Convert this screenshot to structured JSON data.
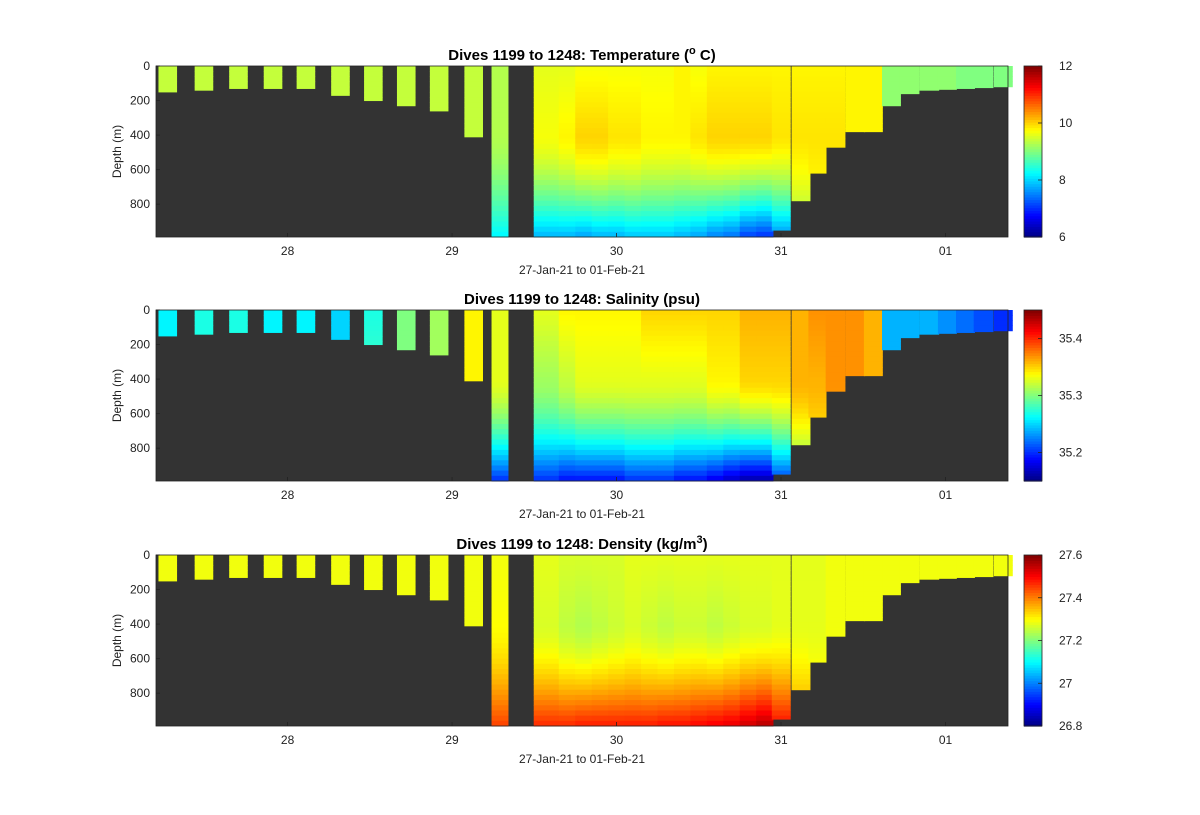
{
  "figure": {
    "colors": {
      "background": "#ffffff",
      "no_data": "#333333",
      "axis": "#222222"
    }
  },
  "chart_data": [
    {
      "type": "heatmap",
      "title": "Dives 1199 to 1248: Temperature (",
      "title_sup": "o",
      "title_tail": " C)",
      "xlabel": "27-Jan-21 to 01-Feb-21",
      "ylabel": "Depth (m)",
      "x_ticks": [
        28,
        29,
        30,
        31,
        1
      ],
      "x_tick_labels": [
        "28",
        "29",
        "30",
        "31",
        "01"
      ],
      "xlim": [
        27.2,
        32.38
      ],
      "y_ticks": [
        0,
        200,
        400,
        600,
        800
      ],
      "y_tick_labels": [
        "0",
        "200",
        "400",
        "600",
        "800"
      ],
      "ylim": [
        0,
        990
      ],
      "y_reversed": true,
      "colorbar": {
        "range": [
          6,
          12
        ],
        "ticks": [
          6,
          8,
          10,
          12
        ],
        "tick_labels": [
          "6",
          "8",
          "10",
          "12"
        ],
        "colormap": "jet"
      },
      "field": "temperature"
    },
    {
      "type": "heatmap",
      "title": "Dives 1199 to 1248: Salinity (psu)",
      "title_sup": "",
      "title_tail": "",
      "xlabel": "27-Jan-21 to 01-Feb-21",
      "ylabel": "Depth (m)",
      "x_ticks": [
        28,
        29,
        30,
        31,
        1
      ],
      "x_tick_labels": [
        "28",
        "29",
        "30",
        "31",
        "01"
      ],
      "xlim": [
        27.2,
        32.38
      ],
      "y_ticks": [
        0,
        200,
        400,
        600,
        800
      ],
      "y_tick_labels": [
        "0",
        "200",
        "400",
        "600",
        "800"
      ],
      "ylim": [
        0,
        990
      ],
      "y_reversed": true,
      "colorbar": {
        "range": [
          35.15,
          35.45
        ],
        "ticks": [
          35.2,
          35.3,
          35.4
        ],
        "tick_labels": [
          "35.2",
          "35.3",
          "35.4"
        ],
        "colormap": "jet"
      },
      "field": "salinity"
    },
    {
      "type": "heatmap",
      "title": "Dives 1199 to 1248: Density (kg/m",
      "title_sup": "3",
      "title_tail": ")",
      "xlabel": "27-Jan-21 to 01-Feb-21",
      "ylabel": "Depth (m)",
      "x_ticks": [
        28,
        29,
        30,
        31,
        1
      ],
      "x_tick_labels": [
        "28",
        "29",
        "30",
        "31",
        "01"
      ],
      "xlim": [
        27.2,
        32.38
      ],
      "y_ticks": [
        0,
        200,
        400,
        600,
        800
      ],
      "y_tick_labels": [
        "0",
        "200",
        "400",
        "600",
        "800"
      ],
      "ylim": [
        0,
        990
      ],
      "y_reversed": true,
      "colorbar": {
        "range": [
          26.8,
          27.6
        ],
        "ticks": [
          26.8,
          27,
          27.2,
          27.4,
          27.6
        ],
        "tick_labels": [
          "26.8",
          "27",
          "27.2",
          "27.4",
          "27.6"
        ],
        "colormap": "jet"
      },
      "field": "density"
    }
  ],
  "dives": {
    "time": [
      27.27,
      27.49,
      27.7,
      27.91,
      28.11,
      28.32,
      28.52,
      28.72,
      28.92,
      29.13,
      29.29,
      29.6,
      29.7,
      29.8,
      29.9,
      30.0,
      30.1,
      30.2,
      30.3,
      30.4,
      30.5,
      30.6,
      30.7,
      30.8,
      30.9,
      31.0,
      31.12,
      31.22,
      31.33,
      31.45,
      31.56,
      31.67,
      31.78,
      31.9,
      32.01,
      32.12,
      32.23,
      32.35
    ],
    "max_depth": [
      150,
      140,
      130,
      130,
      130,
      170,
      200,
      230,
      260,
      410,
      990,
      990,
      990,
      990,
      990,
      990,
      990,
      990,
      990,
      990,
      990,
      990,
      990,
      990,
      990,
      950,
      780,
      620,
      470,
      380,
      380,
      230,
      160,
      140,
      135,
      130,
      125,
      120
    ],
    "temperature": {
      "surface": [
        9.4,
        9.4,
        9.4,
        9.4,
        9.4,
        9.4,
        9.4,
        9.4,
        9.4,
        9.4,
        9.3,
        9.6,
        9.6,
        9.7,
        9.7,
        9.7,
        9.7,
        9.7,
        9.7,
        9.8,
        9.7,
        9.8,
        9.8,
        9.8,
        9.8,
        9.8,
        9.8,
        9.8,
        9.8,
        9.8,
        9.8,
        9.1,
        9.1,
        9.1,
        9.1,
        9.0,
        9.0,
        9.0
      ],
      "mid": [
        9.4,
        9.4,
        9.4,
        9.4,
        9.4,
        9.4,
        9.4,
        9.4,
        9.4,
        9.4,
        9.3,
        9.7,
        9.8,
        10.0,
        10.0,
        9.9,
        9.9,
        9.8,
        9.8,
        9.8,
        9.9,
        10.0,
        10.0,
        10.0,
        10.0,
        9.9,
        9.9,
        9.9,
        9.9,
        9.8,
        9.8,
        9.1,
        9.1,
        9.1,
        9.1,
        9.0,
        9.0,
        9.0
      ],
      "bottom": [
        9.4,
        9.4,
        9.4,
        9.4,
        9.4,
        9.4,
        9.4,
        9.4,
        9.4,
        9.4,
        8.2,
        7.8,
        7.8,
        7.7,
        7.8,
        7.8,
        7.9,
        7.9,
        7.9,
        7.8,
        7.7,
        7.5,
        7.4,
        7.1,
        7.0,
        7.5,
        9.0,
        9.5,
        9.7,
        9.8,
        9.8,
        9.1,
        9.1,
        9.1,
        9.1,
        9.0,
        9.0,
        9.0
      ]
    },
    "salinity": {
      "surface": [
        35.26,
        35.27,
        35.27,
        35.26,
        35.26,
        35.25,
        35.27,
        35.3,
        35.31,
        35.34,
        35.33,
        35.33,
        35.34,
        35.34,
        35.34,
        35.34,
        35.34,
        35.35,
        35.35,
        35.35,
        35.35,
        35.35,
        35.35,
        35.36,
        35.36,
        35.36,
        35.36,
        35.37,
        35.37,
        35.37,
        35.36,
        35.24,
        35.24,
        35.24,
        35.23,
        35.22,
        35.21,
        35.2
      ],
      "mid": [
        35.26,
        35.27,
        35.27,
        35.26,
        35.26,
        35.25,
        35.28,
        35.3,
        35.31,
        35.34,
        35.33,
        35.31,
        35.32,
        35.33,
        35.33,
        35.33,
        35.33,
        35.33,
        35.33,
        35.33,
        35.33,
        35.34,
        35.34,
        35.35,
        35.35,
        35.35,
        35.36,
        35.36,
        35.37,
        35.37,
        35.36,
        35.24,
        35.24,
        35.24,
        35.23,
        35.22,
        35.21,
        35.2
      ],
      "bottom": [
        35.26,
        35.27,
        35.27,
        35.26,
        35.26,
        35.25,
        35.28,
        35.3,
        35.31,
        35.34,
        35.2,
        35.2,
        35.19,
        35.19,
        35.19,
        35.19,
        35.2,
        35.2,
        35.2,
        35.19,
        35.19,
        35.18,
        35.17,
        35.16,
        35.16,
        35.2,
        35.28,
        35.32,
        35.34,
        35.35,
        35.35,
        35.24,
        35.24,
        35.24,
        35.23,
        35.22,
        35.21,
        35.2
      ]
    },
    "density": {
      "surface": [
        27.29,
        27.29,
        27.29,
        27.29,
        27.29,
        27.29,
        27.29,
        27.29,
        27.29,
        27.29,
        27.29,
        27.28,
        27.27,
        27.27,
        27.27,
        27.27,
        27.28,
        27.28,
        27.28,
        27.28,
        27.28,
        27.28,
        27.28,
        27.28,
        27.28,
        27.28,
        27.28,
        27.28,
        27.29,
        27.29,
        27.29,
        27.29,
        27.29,
        27.29,
        27.29,
        27.29,
        27.29,
        27.29
      ],
      "mid": [
        27.29,
        27.29,
        27.29,
        27.29,
        27.29,
        27.29,
        27.29,
        27.29,
        27.29,
        27.29,
        27.3,
        27.27,
        27.25,
        27.24,
        27.25,
        27.26,
        27.27,
        27.26,
        27.25,
        27.26,
        27.26,
        27.25,
        27.26,
        27.27,
        27.27,
        27.28,
        27.28,
        27.28,
        27.29,
        27.29,
        27.29,
        27.29,
        27.29,
        27.29,
        27.29,
        27.29,
        27.29,
        27.29
      ],
      "bottom": [
        27.29,
        27.29,
        27.29,
        27.29,
        27.29,
        27.29,
        27.29,
        27.29,
        27.29,
        27.29,
        27.45,
        27.47,
        27.47,
        27.48,
        27.48,
        27.48,
        27.48,
        27.48,
        27.49,
        27.49,
        27.5,
        27.51,
        27.52,
        27.54,
        27.56,
        27.5,
        27.4,
        27.35,
        27.31,
        27.3,
        27.29,
        27.29,
        27.29,
        27.29,
        27.29,
        27.29,
        27.29,
        27.29
      ]
    }
  }
}
